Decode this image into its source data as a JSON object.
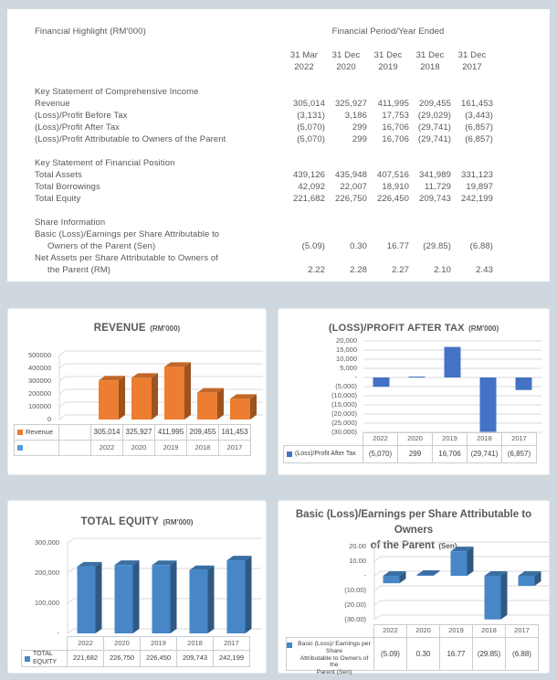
{
  "page": {
    "background": "#cfd8df",
    "panel_background": "#ffffff"
  },
  "financial_table": {
    "title": "Financial Highlight (RM'000)",
    "period_header": "Financial Period/Year Ended",
    "col_headers": [
      {
        "line1": "31 Mar",
        "line2": "2022"
      },
      {
        "line1": "31 Dec",
        "line2": "2020"
      },
      {
        "line1": "31 Dec",
        "line2": "2019"
      },
      {
        "line1": "31 Dec",
        "line2": "2018"
      },
      {
        "line1": "31 Dec",
        "line2": "2017"
      }
    ],
    "sections": [
      {
        "heading": "Key Statement of Comprehensive Income",
        "rows": [
          {
            "label": "Revenue",
            "values": [
              "305,014",
              "325,927",
              "411,995",
              "209,455",
              "161,453"
            ]
          },
          {
            "label": "(Loss)/Profit Before Tax",
            "values": [
              "(3,131)",
              "3,186",
              "17,753",
              "(29,029)",
              "(3,443)"
            ]
          },
          {
            "label": "(Loss)/Profit After Tax",
            "values": [
              "(5,070)",
              "299",
              "16,706",
              "(29,741)",
              "(6,857)"
            ]
          },
          {
            "label": "(Loss)/Profit Attributable to Owners of the Parent",
            "values": [
              "(5,070)",
              "299",
              "16,706",
              "(29,741)",
              "(6,857)"
            ]
          }
        ]
      },
      {
        "heading": "Key Statement of Financial Position",
        "rows": [
          {
            "label": "Total Assets",
            "values": [
              "439,126",
              "435,948",
              "407,516",
              "341,989",
              "331,123"
            ]
          },
          {
            "label": "Total Borrowings",
            "values": [
              "42,092",
              "22,007",
              "18,910",
              "11,729",
              "19,897"
            ]
          },
          {
            "label": "Total Equity",
            "values": [
              "221,682",
              "226,750",
              "226,450",
              "209,743",
              "242,199"
            ]
          }
        ]
      },
      {
        "heading": "Share Information",
        "rows": [
          {
            "label": "Basic (Loss)/Earnings per Share Attributable to",
            "label_line2": "Owners of the Parent (Sen)",
            "values": [
              "(5.09)",
              "0.30",
              "16.77",
              "(29.85)",
              "(6.88)"
            ]
          },
          {
            "label": "Net Assets per Share Attributable to Owners of",
            "label_line2": "the Parent (RM)",
            "values": [
              "2.22",
              "2.28",
              "2.27",
              "2.10",
              "2.43"
            ]
          }
        ]
      }
    ]
  },
  "chart_data": [
    {
      "type": "bar",
      "style": "3d",
      "title": "REVENUE",
      "title_unit": "(RM'000)",
      "categories": [
        "2022",
        "2020",
        "2019",
        "2018",
        "2017"
      ],
      "values": [
        305014,
        325927,
        411995,
        209455,
        161453
      ],
      "value_labels": [
        "305,014",
        "325,927",
        "411,995",
        "209,455",
        "161,453"
      ],
      "legend": "Revenue",
      "series_color": "#ED7D31",
      "series2_color": "#5B9BD5",
      "ytick_labels": [
        "500000",
        "400000",
        "300000",
        "200000",
        "100000",
        "0"
      ],
      "ylim": [
        0,
        500000
      ],
      "grid": true,
      "legend_position": "table-left",
      "leading_blank_category": true
    },
    {
      "type": "bar",
      "style": "flat",
      "title": "(LOSS)/PROFIT AFTER TAX",
      "title_unit": "(RM'000)",
      "categories": [
        "2022",
        "2020",
        "2019",
        "2018",
        "2017"
      ],
      "values": [
        -5070,
        299,
        16706,
        -29741,
        -6857
      ],
      "value_labels": [
        "(5,070)",
        "299",
        "16,706",
        "(29,741)",
        "(6,857)"
      ],
      "legend": "(Loss)/Profit After Tax",
      "series_color": "#4472C4",
      "ytick_labels": [
        "20,000",
        "15,000",
        "10,000",
        "5,000",
        "-",
        "(5,000)",
        "(10,000)",
        "(15,000)",
        "(20,000)",
        "(25,000)",
        "(30,000)"
      ],
      "ylim": [
        -30000,
        20000
      ],
      "grid": true,
      "legend_position": "table-left"
    },
    {
      "type": "bar",
      "style": "3d",
      "title": "TOTAL EQUITY",
      "title_unit": "(RM'000)",
      "categories": [
        "2022",
        "2020",
        "2019",
        "2018",
        "2017"
      ],
      "values": [
        221682,
        226750,
        226450,
        209743,
        242199
      ],
      "value_labels": [
        "221,682",
        "226,750",
        "226,450",
        "209,743",
        "242,199"
      ],
      "legend": "TOTAL EQUITY",
      "series_color": "#4787C7",
      "ytick_labels": [
        "300,000",
        "200,000",
        "100,000",
        "-"
      ],
      "ylim": [
        0,
        300000
      ],
      "grid": true,
      "legend_position": "table-left"
    },
    {
      "type": "bar",
      "style": "3d",
      "title": "Basic (Loss)/Earnings per Share Attributable to Owners",
      "title_line2": "of the Parent",
      "title_unit": "(Sen)",
      "categories": [
        "2022",
        "2020",
        "2019",
        "2018",
        "2017"
      ],
      "values": [
        -5.09,
        0.3,
        16.77,
        -29.85,
        -6.88
      ],
      "value_labels": [
        "(5.09)",
        "0.30",
        "16.77",
        "(29.85)",
        "(6.88)"
      ],
      "legend_lines": [
        "Basic (Loss)/ Earnings per Share",
        "Attributable to Owners of the",
        "Parent (Sen)"
      ],
      "series_color": "#4787C7",
      "ytick_labels": [
        "20.00",
        "10.00",
        "-",
        "(10.00)",
        "(20.00)",
        "(30.00)"
      ],
      "ylim": [
        -30,
        20
      ],
      "grid": true,
      "legend_position": "table-left"
    }
  ]
}
